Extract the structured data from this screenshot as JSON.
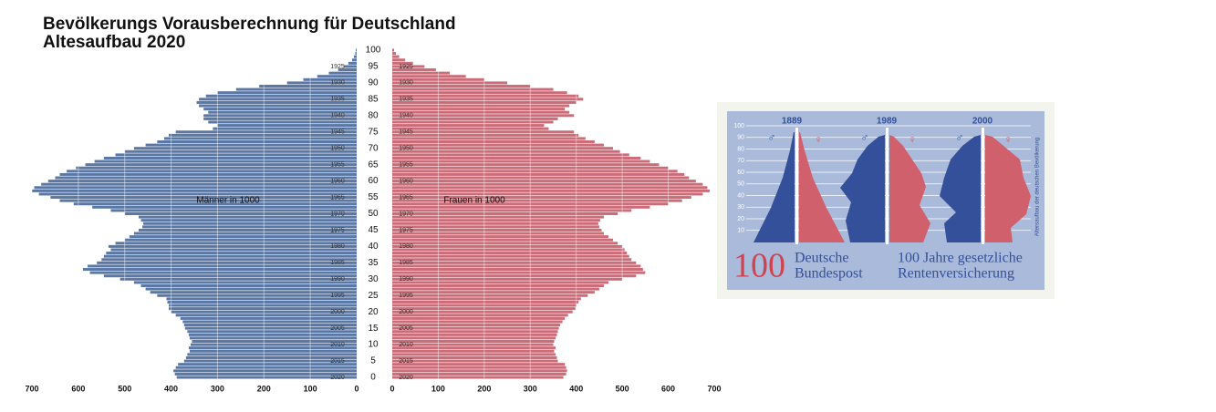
{
  "chart_data": {
    "type": "pyramid",
    "title": "Bevölkerungs Vorausberechnung für Deutschland",
    "subtitle": "Altesaufbau 2020",
    "annotations": [
      "Männer in 1000",
      "Frauen in 1000"
    ],
    "ylim": [
      0,
      100
    ],
    "yticks": [
      0,
      5,
      10,
      15,
      20,
      25,
      30,
      35,
      40,
      45,
      50,
      55,
      60,
      65,
      70,
      75,
      80,
      85,
      90,
      95,
      100
    ],
    "y2lim": [
      0,
      100
    ],
    "y2ticks": [
      {
        "value": 0,
        "label": "2020"
      },
      {
        "value": 5,
        "label": "2015"
      },
      {
        "value": 10,
        "label": "2010"
      },
      {
        "value": 15,
        "label": "2005"
      },
      {
        "value": 20,
        "label": "2000"
      },
      {
        "value": 25,
        "label": "1995"
      },
      {
        "value": 30,
        "label": "1990"
      },
      {
        "value": 35,
        "label": "1985"
      },
      {
        "value": 40,
        "label": "1980"
      },
      {
        "value": 45,
        "label": "1975"
      },
      {
        "value": 50,
        "label": "1970"
      },
      {
        "value": 55,
        "label": "1965"
      },
      {
        "value": 60,
        "label": "1960"
      },
      {
        "value": 65,
        "label": "1955"
      },
      {
        "value": 70,
        "label": "1950"
      },
      {
        "value": 75,
        "label": "1945"
      },
      {
        "value": 80,
        "label": "1940"
      },
      {
        "value": 85,
        "label": "1935"
      },
      {
        "value": 90,
        "label": "1930"
      },
      {
        "value": 95,
        "label": "1925"
      }
    ],
    "xlim": [
      0,
      700
    ],
    "xticks": [
      0,
      100,
      200,
      300,
      400,
      500,
      600,
      700
    ],
    "grid": true,
    "series": [
      {
        "side": "left",
        "color": "#5b78a4",
        "values": [
          388,
          392,
          395,
          390,
          385,
          372,
          368,
          365,
          360,
          362,
          358,
          355,
          360,
          362,
          365,
          370,
          372,
          375,
          380,
          390,
          400,
          405,
          405,
          408,
          410,
          430,
          445,
          455,
          465,
          480,
          510,
          545,
          575,
          590,
          580,
          560,
          550,
          545,
          540,
          530,
          535,
          520,
          500,
          490,
          480,
          470,
          462,
          460,
          465,
          470,
          500,
          530,
          570,
          610,
          640,
          660,
          685,
          700,
          695,
          680,
          665,
          650,
          640,
          625,
          605,
          585,
          565,
          545,
          520,
          500,
          480,
          455,
          430,
          415,
          405,
          390,
          310,
          300,
          320,
          330,
          330,
          320,
          330,
          340,
          345,
          340,
          325,
          300,
          260,
          210,
          150,
          115,
          85,
          60,
          40,
          28,
          18,
          10,
          6,
          3,
          2
        ]
      },
      {
        "side": "right",
        "color": "#cc6c78",
        "values": [
          372,
          378,
          380,
          378,
          375,
          360,
          358,
          355,
          352,
          355,
          350,
          352,
          355,
          358,
          360,
          362,
          365,
          370,
          375,
          382,
          392,
          398,
          400,
          405,
          410,
          425,
          440,
          450,
          460,
          470,
          500,
          530,
          550,
          545,
          540,
          530,
          520,
          515,
          510,
          505,
          500,
          490,
          480,
          470,
          460,
          455,
          450,
          448,
          452,
          460,
          490,
          520,
          560,
          600,
          630,
          650,
          675,
          690,
          685,
          675,
          660,
          645,
          635,
          620,
          600,
          580,
          560,
          540,
          515,
          495,
          480,
          460,
          440,
          420,
          405,
          395,
          340,
          330,
          350,
          360,
          395,
          385,
          375,
          385,
          400,
          415,
          405,
          380,
          350,
          300,
          250,
          200,
          160,
          125,
          95,
          70,
          45,
          28,
          15,
          8,
          4
        ]
      }
    ]
  },
  "stamp": {
    "years": [
      "1889",
      "1989",
      "2000"
    ],
    "symbols": [
      "♂",
      "♀"
    ],
    "scale": [
      "100",
      "90",
      "80",
      "70",
      "60",
      "50",
      "40",
      "30",
      "20",
      "10"
    ],
    "side_label": "Altersaufbau der deutschen Bevölkerung",
    "denomination": "100",
    "issuer": [
      "Deutsche",
      "Bundespost"
    ],
    "caption": [
      "100 Jahre gesetzliche",
      "Rentenversicherung"
    ]
  }
}
